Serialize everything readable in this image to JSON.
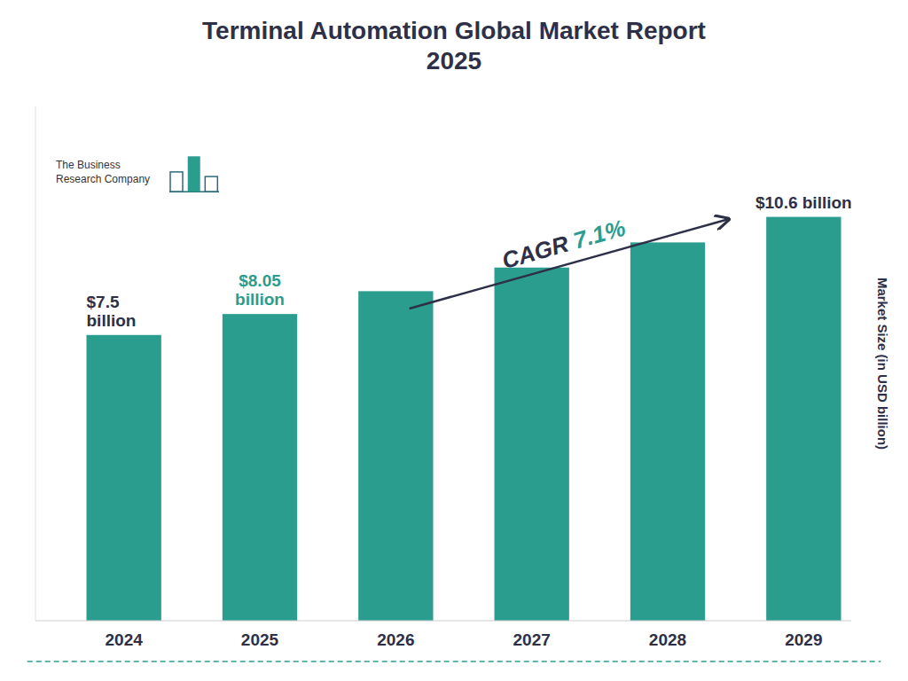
{
  "chart_data": {
    "type": "bar",
    "title": "Terminal Automation Global Market Report\n2025",
    "categories": [
      "2024",
      "2025",
      "2026",
      "2027",
      "2028",
      "2029"
    ],
    "values": [
      7.5,
      8.05,
      8.65,
      9.27,
      9.93,
      10.6
    ],
    "color": "#2a9d8f",
    "ylim": [
      0,
      13.5
    ],
    "ylabel": "Market Size (in USD billion)",
    "grid": false,
    "tick_labels": "x",
    "annotations": [
      {
        "text": "$7.5\nbillion",
        "x": "2024",
        "y": 7.5,
        "color": "#2d3047"
      },
      {
        "text": "$8.05\nbillion",
        "x": "2025",
        "y": 8.05,
        "color": "#2a9d8f"
      },
      {
        "text": "$10.6 billion",
        "x": "2029",
        "y": 10.6,
        "color": "#2d3047"
      },
      {
        "text": "CAGR",
        "color": "#2d3047"
      },
      {
        "text": "7.1%",
        "color": "#2a9d8f"
      },
      {
        "text": "The Business\nResearch Company",
        "color": "#333333"
      }
    ]
  }
}
